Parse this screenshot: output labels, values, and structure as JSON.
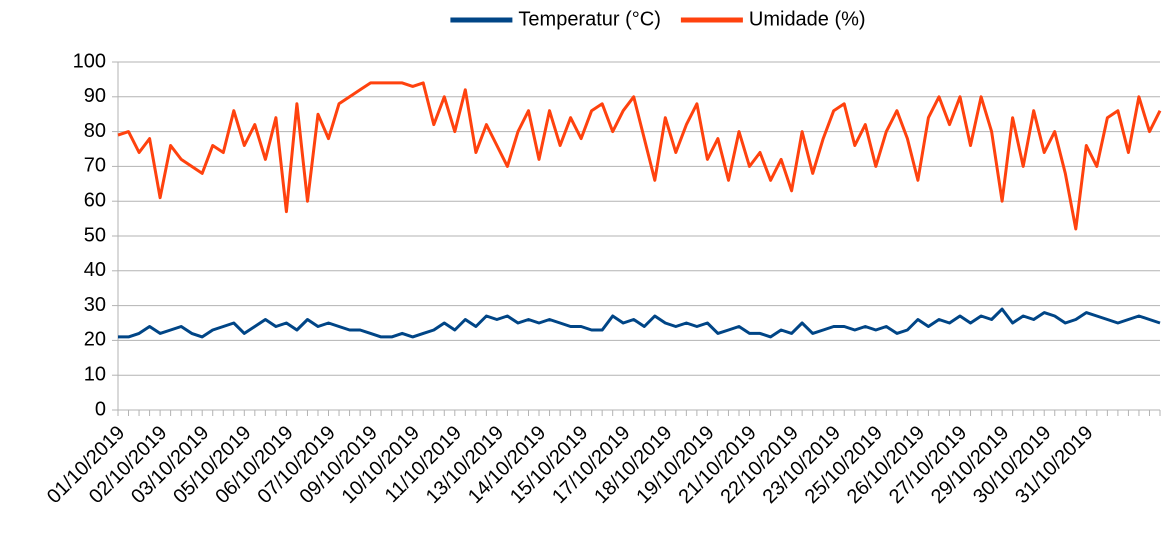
{
  "chart_data": {
    "type": "line",
    "categories": [
      "01/10/2019",
      null,
      null,
      null,
      "02/10/2019",
      null,
      null,
      null,
      "03/10/2019",
      null,
      null,
      null,
      "05/10/2019",
      null,
      null,
      null,
      "06/10/2019",
      null,
      null,
      null,
      "07/10/2019",
      null,
      null,
      null,
      "09/10/2019",
      null,
      null,
      null,
      "10/10/2019",
      null,
      null,
      null,
      "11/10/2019",
      null,
      null,
      null,
      "13/10/2019",
      null,
      null,
      null,
      "14/10/2019",
      null,
      null,
      null,
      "15/10/2019",
      null,
      null,
      null,
      "17/10/2019",
      null,
      null,
      null,
      "18/10/2019",
      null,
      null,
      null,
      "19/10/2019",
      null,
      null,
      null,
      "21/10/2019",
      null,
      null,
      null,
      "22/10/2019",
      null,
      null,
      null,
      "23/10/2019",
      null,
      null,
      null,
      "25/10/2019",
      null,
      null,
      null,
      "26/10/2019",
      null,
      null,
      null,
      "27/10/2019",
      null,
      null,
      null,
      "29/10/2019",
      null,
      null,
      null,
      "30/10/2019",
      null,
      null,
      null,
      "31/10/2019",
      null,
      null,
      null,
      null,
      null,
      null,
      null
    ],
    "series": [
      {
        "name": "Temperatur (°C)",
        "color": "#004586",
        "values": [
          21,
          21,
          22,
          24,
          22,
          23,
          24,
          22,
          21,
          23,
          24,
          25,
          22,
          24,
          26,
          24,
          25,
          23,
          26,
          24,
          25,
          24,
          23,
          23,
          22,
          21,
          21,
          22,
          21,
          22,
          23,
          25,
          23,
          26,
          24,
          27,
          26,
          27,
          25,
          26,
          25,
          26,
          25,
          24,
          24,
          23,
          23,
          27,
          25,
          26,
          24,
          27,
          25,
          24,
          25,
          24,
          25,
          22,
          23,
          24,
          22,
          22,
          21,
          23,
          22,
          25,
          22,
          23,
          24,
          24,
          23,
          24,
          23,
          24,
          22,
          23,
          26,
          24,
          26,
          25,
          27,
          25,
          27,
          26,
          29,
          25,
          27,
          26,
          28,
          27,
          25,
          26,
          28,
          27,
          26,
          25,
          26,
          27,
          26,
          25
        ]
      },
      {
        "name": "Umidade (%)",
        "color": "#ff420e",
        "values": [
          79,
          80,
          74,
          78,
          61,
          76,
          72,
          70,
          68,
          76,
          74,
          86,
          76,
          82,
          72,
          84,
          57,
          88,
          60,
          85,
          78,
          88,
          90,
          92,
          94,
          94,
          94,
          94,
          93,
          94,
          82,
          90,
          80,
          92,
          74,
          82,
          76,
          70,
          80,
          86,
          72,
          86,
          76,
          84,
          78,
          86,
          88,
          80,
          86,
          90,
          78,
          66,
          84,
          74,
          82,
          88,
          72,
          78,
          66,
          80,
          70,
          74,
          66,
          72,
          63,
          80,
          68,
          78,
          86,
          88,
          76,
          82,
          70,
          80,
          86,
          78,
          66,
          84,
          90,
          82,
          90,
          76,
          90,
          80,
          60,
          84,
          70,
          86,
          74,
          80,
          68,
          52,
          76,
          70,
          84,
          86,
          74,
          90,
          80,
          86
        ]
      }
    ],
    "ylim": [
      0,
      100
    ],
    "yticks": [
      0,
      10,
      20,
      30,
      40,
      50,
      60,
      70,
      80,
      90,
      100
    ],
    "grid": true,
    "legend": "top"
  }
}
